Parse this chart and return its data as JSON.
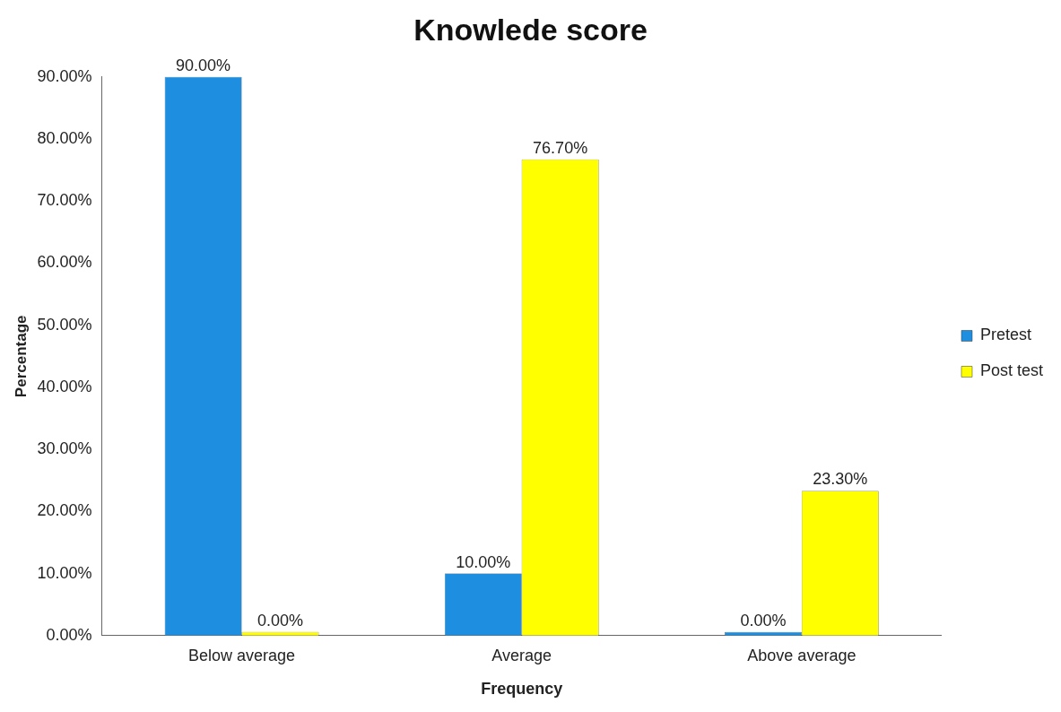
{
  "chart_data": {
    "type": "bar",
    "title": "Knowlede score",
    "xlabel": "Frequency",
    "ylabel": "Percentage",
    "categories": [
      "Below average",
      "Average",
      "Above average"
    ],
    "series": [
      {
        "name": "Pretest",
        "color": "#1e8fe0",
        "values": [
          90,
          10,
          0
        ],
        "value_labels": [
          "90.00%",
          "10.00%",
          "0.00%"
        ]
      },
      {
        "name": "Post test",
        "color": "#ffff00",
        "values": [
          0,
          76.7,
          23.3
        ],
        "value_labels": [
          "0.00%",
          "76.70%",
          "23.30%"
        ]
      }
    ],
    "ylim": [
      0,
      90
    ],
    "yticks": [
      {
        "value": 0,
        "label": "0.00%"
      },
      {
        "value": 10,
        "label": "10.00%"
      },
      {
        "value": 20,
        "label": "20.00%"
      },
      {
        "value": 30,
        "label": "30.00%"
      },
      {
        "value": 40,
        "label": "40.00%"
      },
      {
        "value": 50,
        "label": "50.00%"
      },
      {
        "value": 60,
        "label": "60.00%"
      },
      {
        "value": 70,
        "label": "70.00%"
      },
      {
        "value": 80,
        "label": "80.00%"
      },
      {
        "value": 90,
        "label": "90.00%"
      }
    ],
    "grid": false,
    "legend": "right"
  }
}
